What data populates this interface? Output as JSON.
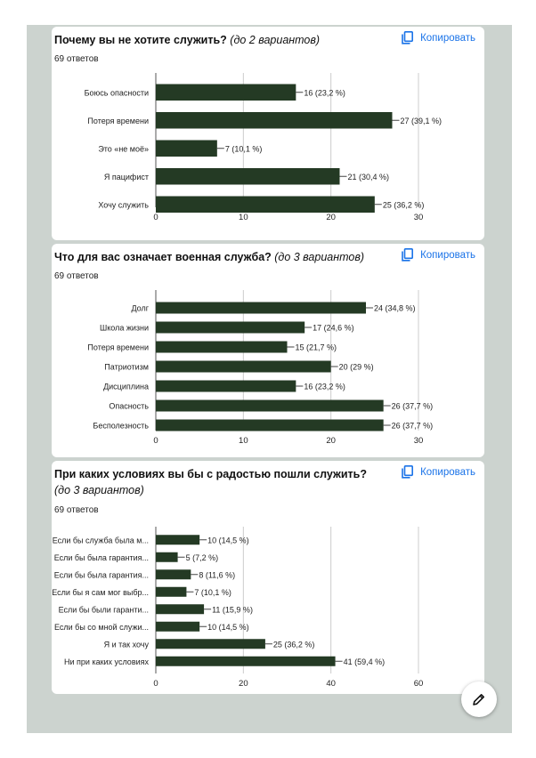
{
  "colors": {
    "bar": "#243a24",
    "grid": "#cccccc",
    "text": "#222222",
    "accent": "#1a73e8"
  },
  "icons": {
    "copy": "copy-icon",
    "edit": "pencil-icon"
  },
  "cards": [
    {
      "title": "Почему вы не хотите служить?",
      "hint": "(до 2 вариантов)",
      "count": "69 ответов",
      "copy_label": "Копировать"
    },
    {
      "title": "Что для вас означает военная служба?",
      "hint": "(до 3 вариантов)",
      "count": "69 ответов",
      "copy_label": "Копировать"
    },
    {
      "title": "При каких условиях вы бы с радостью пошли служить?",
      "hint": "(до 3 вариантов)",
      "count": "69 ответов",
      "copy_label": "Копировать"
    }
  ],
  "chart_data": [
    {
      "type": "bar",
      "orientation": "horizontal",
      "title": "Почему вы не хотите служить? (до 2 вариантов)",
      "categories": [
        "Боюсь опасности",
        "Потеря времени",
        "Это «не моё»",
        "Я пацифист",
        "Хочу служить"
      ],
      "values": [
        16,
        27,
        7,
        21,
        25
      ],
      "labels": [
        "16 (23,2 %)",
        "27 (39,1 %)",
        "7 (10,1 %)",
        "21 (30,4 %)",
        "25 (36,2 %)"
      ],
      "xlim": [
        0,
        30
      ],
      "xticks": [
        "0",
        "10",
        "20",
        "30"
      ]
    },
    {
      "type": "bar",
      "orientation": "horizontal",
      "title": "Что для вас означает военная служба? (до 3 вариантов)",
      "categories": [
        "Долг",
        "Школа жизни",
        "Потеря времени",
        "Патриотизм",
        "Дисциплина",
        "Опасность",
        "Бесполезность"
      ],
      "values": [
        24,
        17,
        15,
        20,
        16,
        26,
        26
      ],
      "labels": [
        "24 (34,8 %)",
        "17 (24,6 %)",
        "15 (21,7 %)",
        "20 (29 %)",
        "16 (23,2 %)",
        "26 (37,7 %)",
        "26 (37,7 %)"
      ],
      "xlim": [
        0,
        30
      ],
      "xticks": [
        "0",
        "10",
        "20",
        "30"
      ]
    },
    {
      "type": "bar",
      "orientation": "horizontal",
      "title": "При каких условиях вы бы с радостью пошли служить? (до 3 вариантов)",
      "categories": [
        "Если бы служба была м...",
        "Если бы была гарантия...",
        "Если бы была гарантия...",
        "Если бы я сам мог выбр...",
        "Если бы были гаранти...",
        "Если бы со мной служи...",
        "Я и так хочу",
        "Ни при каких условиях"
      ],
      "values": [
        10,
        5,
        8,
        7,
        11,
        10,
        25,
        41
      ],
      "labels": [
        "10 (14,5 %)",
        "5 (7,2 %)",
        "8 (11,6 %)",
        "7 (10,1 %)",
        "11 (15,9 %)",
        "10 (14,5 %)",
        "25 (36,2 %)",
        "41 (59,4 %)"
      ],
      "xlim": [
        0,
        60
      ],
      "xticks": [
        "0",
        "20",
        "40",
        "60"
      ]
    }
  ]
}
